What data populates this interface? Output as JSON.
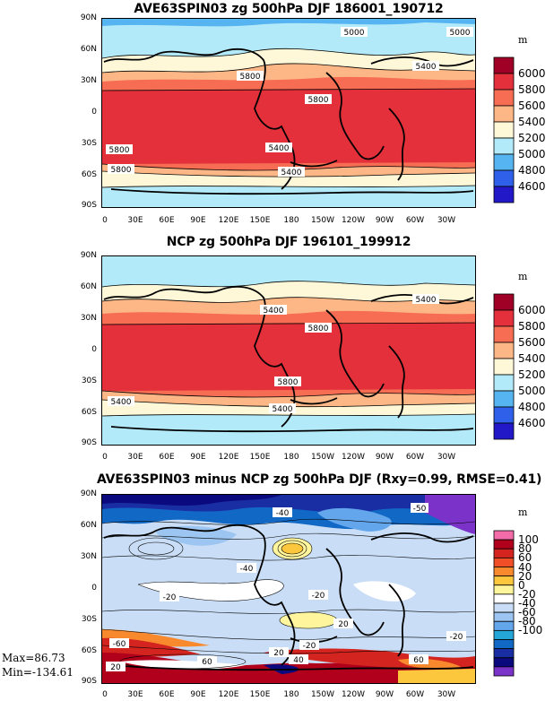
{
  "panels": [
    {
      "title": "AVE63SPIN03 zg 500hPa DJF 186001_190712",
      "unit": "m",
      "lat_labels": [
        "90N",
        "60N",
        "30N",
        "0",
        "30S",
        "60S",
        "90S"
      ],
      "lon_labels": [
        "0",
        "30E",
        "60E",
        "90E",
        "120E",
        "150E",
        "180",
        "150W",
        "120W",
        "90W",
        "60W",
        "30W"
      ],
      "colorbar": {
        "labels": [
          "6000",
          "5800",
          "5600",
          "5400",
          "5200",
          "5000",
          "4800",
          "4600"
        ],
        "colors": [
          "#a00026",
          "#e3303a",
          "#f76d54",
          "#fdb787",
          "#fff8d8",
          "#b3eaf9",
          "#56b4f1",
          "#2e60ea",
          "#2218c8"
        ]
      },
      "contour_labels": [
        "5000",
        "5000",
        "5400",
        "5800",
        "5800",
        "5400",
        "5800",
        "5400",
        "5800"
      ]
    },
    {
      "title": "NCP zg 500hPa DJF 196101_199912",
      "unit": "m",
      "lat_labels": [
        "90N",
        "60N",
        "30N",
        "0",
        "30S",
        "60S",
        "90S"
      ],
      "lon_labels": [
        "0",
        "30E",
        "60E",
        "90E",
        "120E",
        "150E",
        "180",
        "150W",
        "120W",
        "90W",
        "60W",
        "30W"
      ],
      "colorbar": {
        "labels": [
          "6000",
          "5800",
          "5600",
          "5400",
          "5200",
          "5000",
          "4800",
          "4600"
        ],
        "colors": [
          "#a00026",
          "#e3303a",
          "#f76d54",
          "#fdb787",
          "#fff8d8",
          "#b3eaf9",
          "#56b4f1",
          "#2e60ea",
          "#2218c8"
        ]
      },
      "contour_labels": [
        "5400",
        "5400",
        "5800",
        "5800",
        "5400",
        "5400"
      ]
    },
    {
      "title": "AVE63SPIN03 minus NCP zg 500hPa DJF (Rxy=0.99, RMSE=0.41)",
      "unit": "m",
      "lat_labels": [
        "90N",
        "60N",
        "30N",
        "0",
        "30S",
        "60S",
        "90S"
      ],
      "lon_labels": [
        "0",
        "30E",
        "60E",
        "90E",
        "120E",
        "150E",
        "180",
        "150W",
        "120W",
        "90W",
        "60W",
        "30W"
      ],
      "colorbar": {
        "labels": [
          "100",
          "80",
          "60",
          "40",
          "20",
          "0",
          "-20",
          "-40",
          "-60",
          "-80",
          "-100"
        ],
        "colors": [
          "#f36ca9",
          "#b1001b",
          "#d3241f",
          "#ef4e26",
          "#f88a2d",
          "#fcc73c",
          "#fff59c",
          "#ffffff",
          "#c9def6",
          "#9cc5f1",
          "#63a6ec",
          "#25a6d9",
          "#1268c5",
          "#1a2ea3",
          "#0a0a7e",
          "#7b32c8"
        ]
      },
      "contour_labels": [
        "-50",
        "-40",
        "-20",
        "-20",
        "20",
        "20",
        "-20",
        "-20",
        "60",
        "40",
        "20",
        "-60",
        "60",
        "-40"
      ]
    }
  ],
  "stats": {
    "max": "Max=86.73",
    "min": "Min=-134.61"
  }
}
